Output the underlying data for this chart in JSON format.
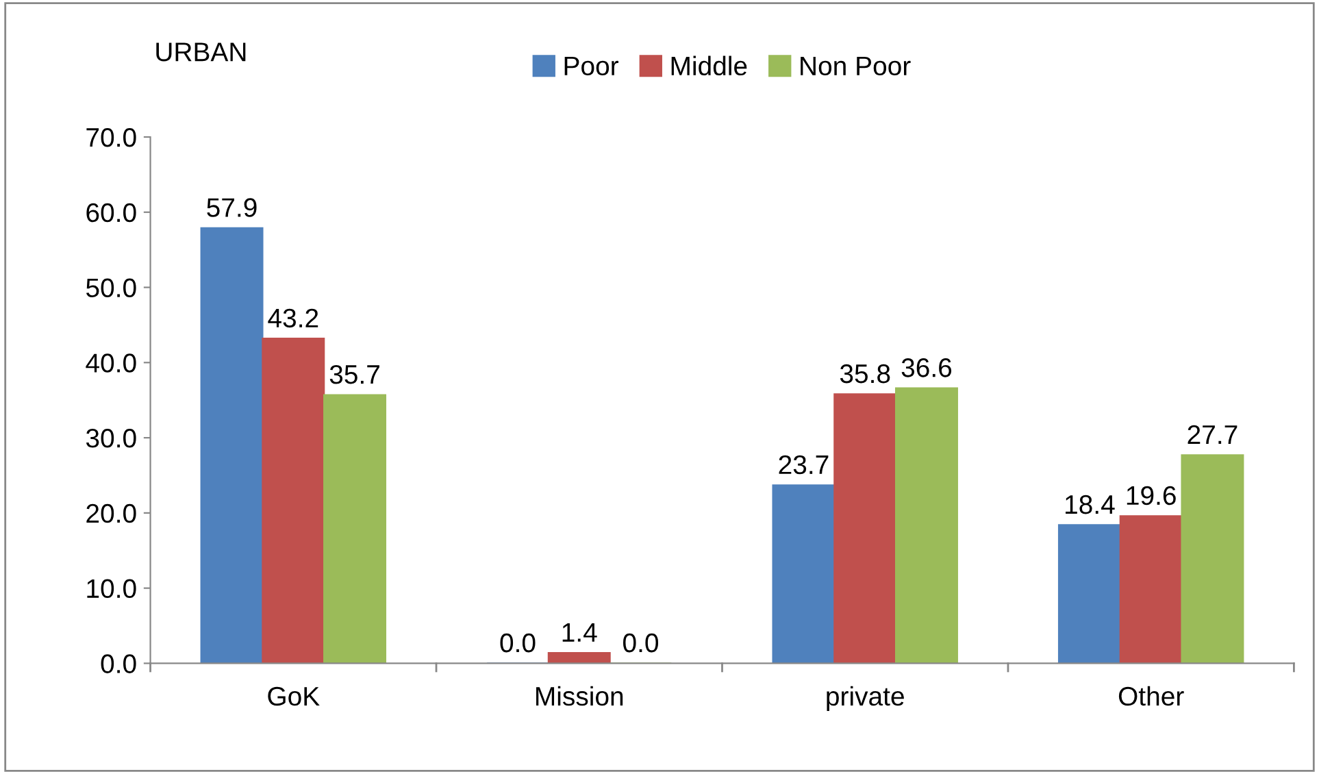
{
  "chart_data": {
    "type": "bar",
    "title": "URBAN",
    "categories": [
      "GoK",
      "Mission",
      "private",
      "Other"
    ],
    "series": [
      {
        "name": "Poor",
        "color": "#4f81bd",
        "values": [
          57.9,
          0.0,
          23.7,
          18.4
        ],
        "value_labels": [
          "57.9",
          "0.0",
          "23.7",
          "18.4"
        ]
      },
      {
        "name": "Middle",
        "color": "#c0504d",
        "values": [
          43.2,
          1.4,
          35.8,
          19.6
        ],
        "value_labels": [
          "43.2",
          "1.4",
          "35.8",
          "19.6"
        ]
      },
      {
        "name": "Non Poor",
        "color": "#9bbb59",
        "values": [
          35.7,
          0.0,
          36.6,
          27.7
        ],
        "value_labels": [
          "35.7",
          "0.0",
          "36.6",
          "27.7"
        ]
      }
    ],
    "ylim": [
      0,
      70
    ],
    "yticks": [
      {
        "value": 0,
        "label": "0.0"
      },
      {
        "value": 10,
        "label": "10.0"
      },
      {
        "value": 20,
        "label": "20.0"
      },
      {
        "value": 30,
        "label": "30.0"
      },
      {
        "value": 40,
        "label": "40.0"
      },
      {
        "value": 50,
        "label": "50.0"
      },
      {
        "value": 60,
        "label": "60.0"
      },
      {
        "value": 70,
        "label": "70.0"
      }
    ],
    "grid": false,
    "legend": "top"
  }
}
